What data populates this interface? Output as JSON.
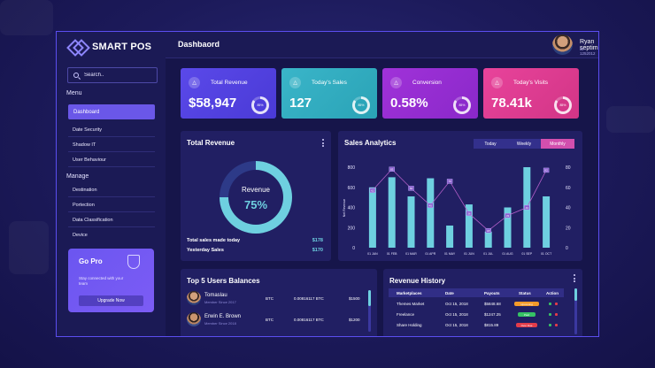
{
  "brand": {
    "name": "SMART POS"
  },
  "search": {
    "placeholder": "Search.."
  },
  "sidebar": {
    "menu_label": "Menu",
    "manage_label": "Manage",
    "active_item": "Dashboard",
    "menu_items": [
      "Date Security",
      "Shadow IT",
      "User Behaviour"
    ],
    "manage_items": [
      "Destination",
      "Portection",
      "Data Classification",
      "Device"
    ]
  },
  "gopro": {
    "title": "Go Pro",
    "text": "Stay connected with your team",
    "button": "Upgrade Now"
  },
  "header": {
    "title": "Dashbaord",
    "user_name": "Ryan septimna",
    "user_id": "ID 1252012"
  },
  "stats": [
    {
      "title": "Total Revenue",
      "value": "$58,947",
      "percent": "85%",
      "progress": 0.85
    },
    {
      "title": "Today's Sales",
      "value": "127",
      "percent": "85%",
      "progress": 0.85
    },
    {
      "title": "Conversion",
      "value": "0.58%",
      "percent": "85%",
      "progress": 0.85
    },
    {
      "title": "Today's Visits",
      "value": "78.41k",
      "percent": "85%",
      "progress": 0.85
    }
  ],
  "total_revenue": {
    "title": "Total Revenue",
    "donut_label": "Revenue",
    "donut_value": "75%",
    "donut_progress": 0.75,
    "rows": [
      {
        "label": "Total sales made today",
        "value": "$178"
      },
      {
        "label": "Yesterday Sales",
        "value": "$170"
      }
    ]
  },
  "sales_analytics": {
    "title": "Sales Analytics",
    "tabs": [
      "Today",
      "Weekly",
      "Monthly"
    ],
    "active_tab": "Monthly"
  },
  "chart_data": {
    "type": "bar",
    "title": "Sales Analytics",
    "categories": [
      "01 JAN",
      "01 FEB",
      "01 MAR",
      "01 APR",
      "01 MAY",
      "01 JUN",
      "01 JUL",
      "01 AUG",
      "01 SEP",
      "01 OCT"
    ],
    "series": [
      {
        "type": "bar",
        "values": [
          600,
          700,
          510,
          690,
          220,
          430,
          160,
          400,
          800,
          510
        ]
      },
      {
        "type": "line",
        "values": [
          570,
          780,
          590,
          420,
          660,
          340,
          170,
          320,
          400,
          770
        ]
      }
    ],
    "ylabel": "Net Revenue",
    "ylim": [
      0,
      800
    ],
    "yticks": [
      "0",
      "200",
      "400",
      "600",
      "800"
    ],
    "y2ticks": [
      "0",
      "20",
      "40",
      "60",
      "80"
    ],
    "line_labels": [
      "62",
      "83",
      "62",
      "45",
      "70",
      "36",
      "18",
      "33",
      "43",
      "82"
    ],
    "colors": {
      "bar": "#6ed0e0",
      "line": "#b35ec8"
    }
  },
  "users": {
    "title": "Top 5 Users Balances",
    "rows": [
      {
        "name": "Tomaslau",
        "since": "Member Since 2017",
        "coin": "BTC",
        "amount": "0.00816117 BTC",
        "total": "$1500"
      },
      {
        "name": "Erwin E. Brown",
        "since": "Member Since 2018",
        "coin": "BTC",
        "amount": "0.00816117 BTC",
        "total": "$1200"
      }
    ]
  },
  "revenue_history": {
    "title": "Revenue History",
    "headers": [
      "Marketplaces",
      "Date",
      "Payouts",
      "Status",
      "Action"
    ],
    "rows": [
      {
        "market": "Themes Market",
        "date": "Oct 15, 2018",
        "payout": "$5848.68",
        "status": "Upcoming",
        "color": "#f39a2a"
      },
      {
        "market": "Freelance",
        "date": "Oct 15, 2018",
        "payout": "$1247.25",
        "status": "Paid",
        "color": "#36c265"
      },
      {
        "market": "Share Holding",
        "date": "Oct 15, 2018",
        "payout": "$815.89",
        "status": "Over Due",
        "color": "#e43c4a"
      }
    ]
  }
}
